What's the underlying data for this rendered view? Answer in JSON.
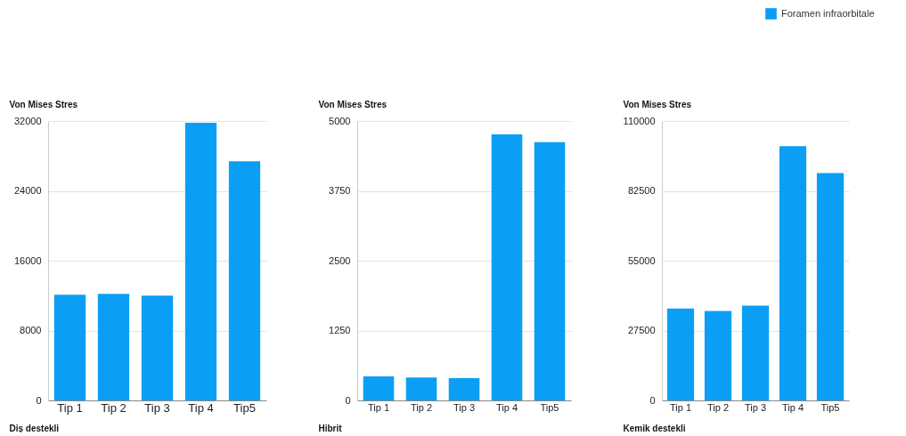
{
  "chart_data": [
    {
      "type": "bar",
      "xlabel": "Diş destekli",
      "ylabel": "Von Mises Stres",
      "categories": [
        "Tip 1",
        "Tip 2",
        "Tip 3",
        "Tip 4",
        "Tip5"
      ],
      "series": [
        {
          "color": "#0a9ff5",
          "values": [
            12100,
            12200,
            12000,
            31800,
            27400
          ]
        }
      ],
      "ylim": [
        0,
        32000
      ],
      "yticks": [
        0,
        8000,
        16000,
        24000,
        32000
      ],
      "grid": "y"
    },
    {
      "type": "bar",
      "xlabel": "Hibrit",
      "ylabel": "Von Mises Stres",
      "categories": [
        "Tip 1",
        "Tip 2",
        "Tip 3",
        "Tip 4",
        "Tip5"
      ],
      "series": [
        {
          "color": "#0a9ff5",
          "values": [
            430,
            410,
            400,
            4760,
            4620
          ]
        }
      ],
      "ylim": [
        0,
        5000
      ],
      "yticks": [
        0,
        1250,
        2500,
        3750,
        5000
      ],
      "grid": "y"
    },
    {
      "type": "bar",
      "xlabel": "Kemik destekli",
      "ylabel": "Von Mises Stres",
      "categories": [
        "Tip 1",
        "Tip 2",
        "Tip 3",
        "Tip 4",
        "Tip5"
      ],
      "series": [
        {
          "name": "Foramen infraorbitale",
          "color": "#0a9ff5",
          "values": [
            36200,
            35200,
            37300,
            100100,
            89500
          ]
        }
      ],
      "ylim": [
        0,
        110000
      ],
      "yticks": [
        0,
        27500,
        55000,
        82500,
        110000
      ],
      "grid": "y",
      "legend": "top right"
    }
  ]
}
